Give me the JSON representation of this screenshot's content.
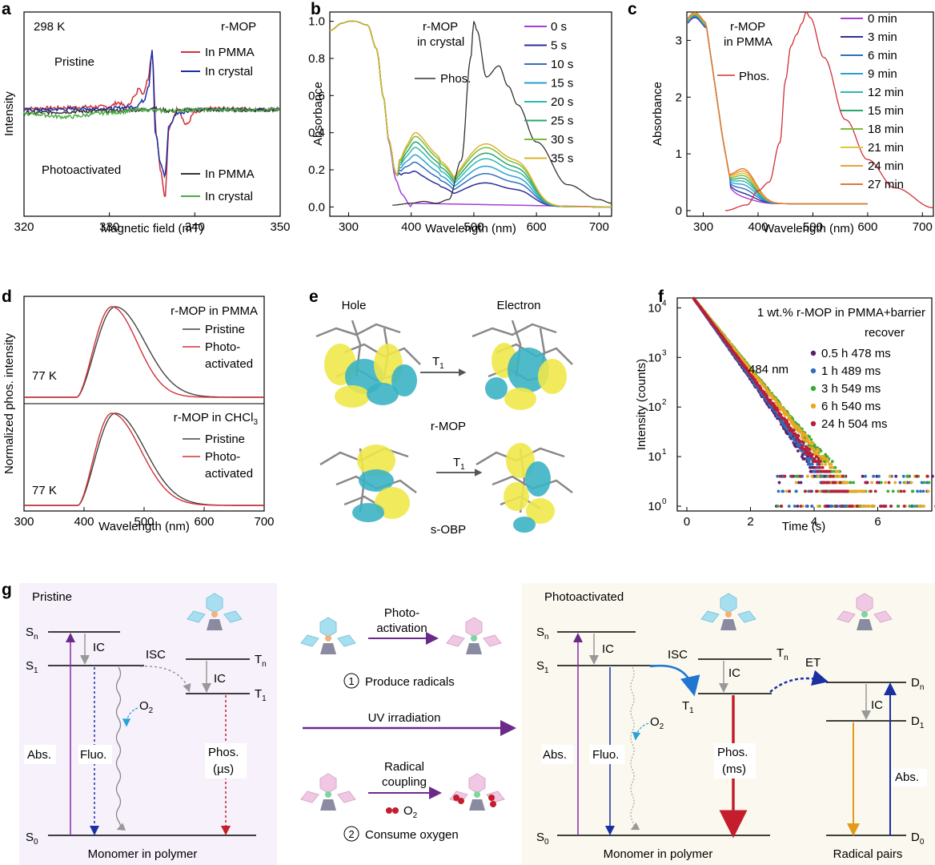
{
  "colors": {
    "red": "#d1303a",
    "blue": "#1b2fa3",
    "black": "#333333",
    "green": "#4cab42",
    "purple": "#6b2a8a",
    "gbg_left": "#f6f1fb",
    "gbg_right": "#fbf9ef"
  },
  "chart_data": [
    {
      "id": "a",
      "panel_label": "a",
      "type": "line",
      "xlabel": "Magnetic field (mT)",
      "ylabel": "Intensity",
      "xlim": [
        320,
        350
      ],
      "xticks": [
        "320",
        "330",
        "340",
        "350"
      ],
      "annotations": {
        "temp": "298 K",
        "compound": "r-MOP",
        "pristine": "Pristine",
        "photo": "Photoactivated"
      },
      "legend": [
        "In PMMA",
        "In crystal",
        "In PMMA",
        "In crystal"
      ],
      "series": [
        {
          "name": "In PMMA",
          "color": "#d1303a",
          "x": [
            320,
            330,
            331,
            332,
            333,
            333.5,
            334,
            334.5,
            335,
            335.5,
            336,
            336.5,
            337,
            338,
            339,
            340,
            342,
            350
          ],
          "y": [
            0.02,
            0.05,
            0.12,
            0.05,
            0.22,
            0.38,
            0.25,
            0.52,
            0.95,
            -0.4,
            -1.0,
            -1.45,
            -0.3,
            0.02,
            -0.25,
            -0.05,
            0.02,
            0.0
          ]
        },
        {
          "name": "In crystal",
          "color": "#1b2fa3",
          "x": [
            320,
            330,
            333,
            334,
            334.6,
            335,
            335.4,
            336,
            336.5,
            337,
            338,
            340,
            350
          ],
          "y": [
            0.0,
            0.02,
            0.05,
            0.15,
            0.4,
            1.0,
            -0.4,
            -0.9,
            -1.1,
            -0.25,
            -0.05,
            0.0,
            0.0
          ]
        },
        {
          "name": "In PMMA",
          "color": "#333333",
          "x": [
            320,
            330,
            334,
            335,
            336,
            337,
            340,
            350
          ],
          "y": [
            -0.05,
            -0.02,
            0.0,
            0.03,
            0.0,
            -0.02,
            0.0,
            0.0
          ]
        },
        {
          "name": "In crystal",
          "color": "#4cab42",
          "x": [
            320,
            325,
            330,
            334,
            336,
            340,
            345,
            350
          ],
          "y": [
            -0.06,
            -0.12,
            -0.05,
            0.0,
            -0.02,
            0.0,
            0.0,
            0.0
          ]
        }
      ]
    },
    {
      "id": "b",
      "panel_label": "b",
      "type": "line",
      "xlabel": "Wavelength (nm)",
      "ylabel": "Absorbance",
      "xlim": [
        270,
        720
      ],
      "ylim": [
        -0.05,
        1.05
      ],
      "xticks": [
        "300",
        "400",
        "500",
        "600",
        "700"
      ],
      "yticks": [
        "0.0",
        "0.2",
        "0.4",
        "0.6",
        "0.8",
        "1.0"
      ],
      "annotations": {
        "compound": "r-MOP",
        "state": "in crystal",
        "phos": "Phos."
      },
      "legend": [
        "0 s",
        "5 s",
        "10 s",
        "15 s",
        "20 s",
        "25 s",
        "30 s",
        "35 s"
      ],
      "series_colors": [
        "#a43fd6",
        "#2b2f98",
        "#2f6fc0",
        "#2ba0cf",
        "#2fb7b0",
        "#2aa66c",
        "#7bbd3a",
        "#d9b32c"
      ],
      "vis_peak": [
        0.0,
        0.12,
        0.17,
        0.21,
        0.25,
        0.28,
        0.31,
        0.33
      ],
      "phos": {
        "x": [
          370,
          400,
          420,
          440,
          460,
          480,
          495,
          500,
          505,
          520,
          540,
          555,
          570,
          600,
          650,
          700,
          720
        ],
        "y": [
          0.01,
          0.02,
          0.03,
          0.02,
          0.04,
          0.25,
          0.8,
          1.0,
          0.95,
          0.7,
          0.76,
          0.65,
          0.55,
          0.35,
          0.12,
          0.04,
          0.02
        ]
      }
    },
    {
      "id": "c",
      "panel_label": "c",
      "type": "line",
      "xlabel": "Wavelength (nm)",
      "ylabel": "Absorbance",
      "xlim": [
        270,
        720
      ],
      "ylim": [
        -0.1,
        3.5
      ],
      "xticks": [
        "300",
        "400",
        "500",
        "600",
        "700"
      ],
      "yticks": [
        "0",
        "1",
        "2",
        "3"
      ],
      "annotations": {
        "compound": "r-MOP",
        "state": "in PMMA",
        "phos": "Phos."
      },
      "legend": [
        "0 min",
        "3 min",
        "6 min",
        "9 min",
        "12 min",
        "15 min",
        "18 min",
        "21 min",
        "24 min",
        "27 min"
      ],
      "series_colors": [
        "#a43fd6",
        "#2b2f98",
        "#2f6fc0",
        "#2ba0cf",
        "#2fb7b0",
        "#2aa66c",
        "#7bbd3a",
        "#e8c23a",
        "#e8a23a",
        "#e2763a"
      ],
      "shoulder": [
        0.05,
        0.12,
        0.2,
        0.27,
        0.33,
        0.38,
        0.43,
        0.47,
        0.51,
        0.55
      ],
      "phos": {
        "x": [
          340,
          380,
          400,
          420,
          440,
          450,
          460,
          470,
          480,
          488,
          495,
          520,
          560,
          600,
          650,
          720
        ],
        "y": [
          0.0,
          0.1,
          0.35,
          0.5,
          1.2,
          2.3,
          2.9,
          3.1,
          3.3,
          3.5,
          3.4,
          2.7,
          1.6,
          0.9,
          0.4,
          0.05
        ]
      }
    },
    {
      "id": "d",
      "panel_label": "d",
      "type": "line",
      "xlabel": "Wavelength (nm)",
      "ylabel": "Normalized phos. intensity",
      "xlim": [
        300,
        700
      ],
      "xticks": [
        "300",
        "400",
        "500",
        "600",
        "700"
      ],
      "top": {
        "title": "r-MOP in PMMA",
        "temp": "77 K",
        "legend": [
          "Pristine",
          "Photo-",
          "activated"
        ]
      },
      "bottom": {
        "title_main": "r-MOP in CHCl",
        "title_sub": "3",
        "temp": "77 K",
        "legend": [
          "Pristine",
          "Photo-",
          "activated"
        ]
      },
      "series": [
        {
          "name": "Pristine",
          "color": "#444444",
          "peak": 452,
          "width_left": 30,
          "width_right": 70
        },
        {
          "name": "Photo-activated",
          "color": "#d1303a",
          "peak": 446,
          "width_left": 30,
          "width_right": 60
        }
      ]
    },
    {
      "id": "f",
      "panel_label": "f",
      "type": "scatter",
      "xlabel": "Time (s)",
      "ylabel": "Intensity (counts)",
      "xlim": [
        0,
        8
      ],
      "ylim_log": [
        0,
        4.2
      ],
      "xticks": [
        "0",
        "2",
        "4",
        "6",
        "8"
      ],
      "yticks": [
        "10",
        "10",
        "10",
        "10",
        "10"
      ],
      "ytick_exps": [
        "0",
        "1",
        "2",
        "3",
        "4"
      ],
      "title": "1 wt.% r-MOP in PMMA+barrier",
      "legend_title": "recover",
      "annotation": "484 nm",
      "series": [
        {
          "name": "0.5 h  478 ms",
          "color": "#5a1f6e",
          "tau": 0.478
        },
        {
          "name": "1 h  489 ms",
          "color": "#2b6fc0",
          "tau": 0.489
        },
        {
          "name": "3 h  549 ms",
          "color": "#3aaa35",
          "tau": 0.549
        },
        {
          "name": "6 h  540 ms",
          "color": "#e8a922",
          "tau": 0.54
        },
        {
          "name": "24 h  504 ms",
          "color": "#b51f3b",
          "tau": 0.504
        }
      ]
    }
  ],
  "panel_e": {
    "label": "e",
    "hole": "Hole",
    "electron": "Electron",
    "t1": "T",
    "t1_sub": "1",
    "mol1": "r-MOP",
    "mol2": "s-OBP"
  },
  "panel_g": {
    "label": "g",
    "left": {
      "title": "Pristine",
      "sn": "S",
      "sn_sub": "n",
      "s1": "S",
      "s1_sub": "1",
      "s0": "S",
      "s0_sub": "0",
      "tn": "T",
      "tn_sub": "n",
      "t1": "T",
      "t1_sub": "1",
      "ic1": "IC",
      "ic2": "IC",
      "isc": "ISC",
      "o2": "O",
      "o2_sub": "2",
      "abs": "Abs.",
      "fluo": "Fluo.",
      "phos": "Phos.",
      "phos_time": "(µs)",
      "footer": "Monomer in polymer"
    },
    "middle": {
      "step1_arrow_a": "Photo-",
      "step1_arrow_b": "activation",
      "step1_num": "1",
      "step1_text": "Produce radicals",
      "uv": "UV irradiation",
      "step2_arrow_a": "Radical",
      "step2_arrow_b": "coupling",
      "step2_o2": "O",
      "step2_o2_sub": "2",
      "step2_num": "2",
      "step2_text": "Consume oxygen"
    },
    "right": {
      "title": "Photoactivated",
      "sn": "S",
      "sn_sub": "n",
      "s1": "S",
      "s1_sub": "1",
      "s0": "S",
      "s0_sub": "0",
      "tn": "T",
      "tn_sub": "n",
      "t1": "T",
      "t1_sub": "1",
      "dn": "D",
      "dn_sub": "n",
      "d1": "D",
      "d1_sub": "1",
      "d0": "D",
      "d0_sub": "0",
      "ic1": "IC",
      "ic2": "IC",
      "ic3": "IC",
      "isc": "ISC",
      "et": "ET",
      "o2": "O",
      "o2_sub": "2",
      "abs": "Abs.",
      "fluo": "Fluo.",
      "phos": "Phos.",
      "phos_time": "(ms)",
      "abs2": "Abs.",
      "footer": "Monomer in polymer",
      "footer2": "Radical pairs"
    }
  }
}
